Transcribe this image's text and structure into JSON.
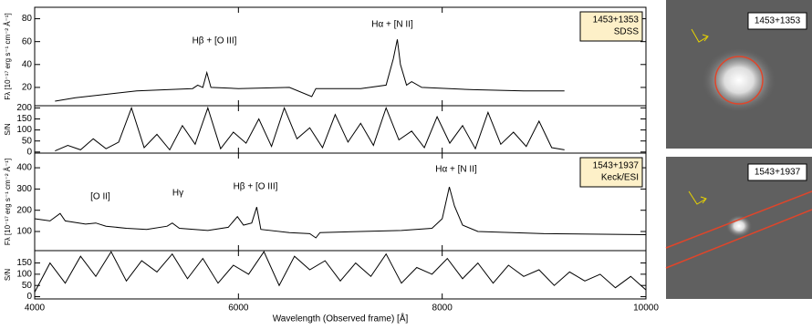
{
  "chart_data": [
    {
      "type": "line",
      "ylabel": "Fλ [10⁻¹⁷ erg s⁻¹ cm⁻² Å⁻¹]",
      "ylim": [
        4,
        90
      ],
      "yticks": [
        20,
        40,
        60,
        80
      ],
      "color": "#000000",
      "annotations": [
        "Hβ + [O III]",
        "Hα + [N II]"
      ],
      "legend_box": [
        "1453+1353",
        "SDSS"
      ],
      "x": [
        4200,
        4400,
        4600,
        4800,
        5000,
        5300,
        5550,
        5600,
        5650,
        5690,
        5730,
        6000,
        6500,
        6720,
        6760,
        7200,
        7450,
        7520,
        7560,
        7590,
        7650,
        7700,
        7800,
        8300,
        8800,
        9200
      ],
      "values": [
        8,
        11,
        13,
        15,
        17,
        18,
        19,
        22,
        20,
        33,
        20,
        19,
        20,
        12,
        19,
        19,
        22,
        45,
        62,
        40,
        22,
        25,
        20,
        18,
        17,
        17
      ]
    },
    {
      "type": "line",
      "ylabel": "S/N",
      "ylim": [
        -5,
        210
      ],
      "yticks": [
        0,
        50,
        100,
        150,
        200
      ],
      "color": "#000000",
      "x": [
        4200,
        4325,
        4450,
        4575,
        4700,
        4825,
        4950,
        5075,
        5200,
        5325,
        5450,
        5575,
        5700,
        5825,
        5950,
        6075,
        6200,
        6325,
        6450,
        6575,
        6700,
        6825,
        6950,
        7075,
        7200,
        7325,
        7450,
        7575,
        7700,
        7825,
        7950,
        8075,
        8200,
        8325,
        8450,
        8575,
        8700,
        8825,
        8950,
        9075,
        9200
      ],
      "values": [
        5,
        30,
        10,
        60,
        15,
        45,
        200,
        20,
        80,
        10,
        120,
        35,
        200,
        15,
        90,
        40,
        150,
        25,
        200,
        60,
        110,
        20,
        170,
        45,
        130,
        30,
        200,
        55,
        95,
        20,
        160,
        40,
        120,
        15,
        180,
        35,
        90,
        25,
        140,
        20,
        10
      ]
    },
    {
      "type": "line",
      "ylabel": "Fλ [10⁻¹⁷ erg s⁻¹ cm⁻² Å⁻¹]",
      "ylim": [
        10,
        469
      ],
      "yticks": [
        100,
        200,
        300,
        400
      ],
      "color": "#000000",
      "annotations": [
        "[O II]",
        "Hγ",
        "Hβ + [O III]",
        "Hα + [N II]"
      ],
      "legend_box": [
        "1543+1937",
        "Keck/ESI"
      ],
      "x": [
        4000,
        4150,
        4250,
        4300,
        4500,
        4600,
        4700,
        4900,
        5100,
        5300,
        5350,
        5420,
        5700,
        5900,
        5990,
        6050,
        6130,
        6180,
        6220,
        6500,
        6700,
        6760,
        6800,
        7200,
        7600,
        7900,
        8000,
        8070,
        8120,
        8200,
        8350,
        9000,
        10000
      ],
      "values": [
        160,
        150,
        185,
        150,
        135,
        140,
        125,
        115,
        110,
        125,
        140,
        115,
        105,
        120,
        170,
        130,
        140,
        215,
        110,
        95,
        90,
        70,
        95,
        100,
        105,
        115,
        160,
        310,
        220,
        130,
        100,
        90,
        85
      ]
    },
    {
      "type": "line",
      "ylabel": "S/N",
      "ylim": [
        -10,
        205
      ],
      "yticks": [
        0,
        50,
        100,
        150
      ],
      "color": "#000000",
      "xlim": [
        4000,
        10000
      ],
      "xticks": [
        4000,
        6000,
        8000,
        10000
      ],
      "xlabel": "Wavelength (Observed frame) [Å]",
      "x": [
        4000,
        4150,
        4300,
        4450,
        4600,
        4750,
        4900,
        5050,
        5200,
        5350,
        5500,
        5650,
        5800,
        5950,
        6100,
        6250,
        6400,
        6550,
        6700,
        6850,
        7000,
        7150,
        7300,
        7450,
        7600,
        7750,
        7900,
        8050,
        8200,
        8350,
        8500,
        8650,
        8800,
        8950,
        9100,
        9250,
        9400,
        9550,
        9700,
        9850,
        10000
      ],
      "values": [
        20,
        150,
        60,
        180,
        90,
        200,
        70,
        160,
        110,
        190,
        80,
        170,
        60,
        140,
        100,
        200,
        50,
        180,
        120,
        160,
        70,
        150,
        90,
        190,
        60,
        130,
        100,
        170,
        80,
        150,
        60,
        140,
        90,
        120,
        50,
        110,
        70,
        100,
        40,
        90,
        30
      ]
    }
  ],
  "images": [
    {
      "label": "1453+1353"
    },
    {
      "label": "1543+1937"
    }
  ]
}
